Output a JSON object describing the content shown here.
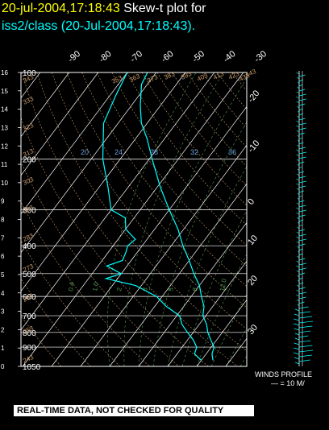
{
  "header": {
    "datetime": "20-jul-2004,17:18:43",
    "label": "Skew-t plot for",
    "subtitle": "iss2/class (20-Jul-2004,17:18:43)."
  },
  "footer": {
    "winds_label": "WINDS PROFILE",
    "winds_scale": "— = 10 M/",
    "notice": "REAL-TIME DATA, NOT CHECKED FOR QUALITY"
  },
  "chart_data": {
    "type": "line",
    "title": "Skew-t plot for iss2/class (20-Jul-2004,17:18:43).",
    "pressure_ticks": [
      100,
      200,
      300,
      400,
      500,
      600,
      700,
      800,
      900,
      1050
    ],
    "height_ticks_km": [
      16,
      15,
      14,
      13,
      12,
      11,
      10,
      9,
      8,
      7,
      6,
      5,
      4,
      3,
      2,
      1,
      0
    ],
    "skewed_temp_top": [
      -90,
      -80,
      -70,
      -60,
      -50,
      -40,
      -30
    ],
    "skewed_temp_right": [
      -20,
      -10,
      0,
      10,
      20,
      30
    ],
    "theta_labels": [
      243,
      253,
      263,
      273,
      283,
      293,
      303,
      313,
      323,
      333,
      343,
      353,
      363,
      373,
      383,
      393,
      403,
      413,
      423,
      433,
      443
    ],
    "mixing_ratio_labels": [
      20,
      24,
      28,
      32,
      36
    ],
    "mixing_ratio_low": [
      "0.4",
      "1.0",
      "2",
      "3",
      "5",
      "8",
      "12.0"
    ],
    "series": [
      {
        "name": "temperature",
        "color": "#00ffff",
        "points": [
          [
            1000,
            24
          ],
          [
            950,
            22
          ],
          [
            900,
            21
          ],
          [
            850,
            18
          ],
          [
            800,
            15
          ],
          [
            750,
            12.5
          ],
          [
            700,
            9
          ],
          [
            650,
            7
          ],
          [
            600,
            3.5
          ],
          [
            550,
            0
          ],
          [
            500,
            -5
          ],
          [
            450,
            -10
          ],
          [
            400,
            -16
          ],
          [
            350,
            -22
          ],
          [
            300,
            -30
          ],
          [
            250,
            -39
          ],
          [
            200,
            -49
          ],
          [
            170,
            -56
          ],
          [
            150,
            -62
          ],
          [
            130,
            -67
          ],
          [
            110,
            -72
          ],
          [
            100,
            -73
          ]
        ]
      },
      {
        "name": "dewpoint",
        "color": "#00ffff",
        "points": [
          [
            1000,
            20
          ],
          [
            950,
            16
          ],
          [
            900,
            15
          ],
          [
            850,
            12
          ],
          [
            800,
            8
          ],
          [
            750,
            4
          ],
          [
            700,
            1
          ],
          [
            650,
            -6
          ],
          [
            600,
            -12
          ],
          [
            550,
            -22
          ],
          [
            520,
            -34
          ],
          [
            500,
            -30
          ],
          [
            470,
            -37
          ],
          [
            450,
            -33
          ],
          [
            420,
            -34
          ],
          [
            400,
            -35
          ],
          [
            380,
            -34
          ],
          [
            350,
            -40
          ],
          [
            320,
            -43
          ],
          [
            300,
            -50
          ],
          [
            250,
            -57
          ],
          [
            200,
            -66
          ],
          [
            150,
            -75
          ],
          [
            120,
            -78
          ],
          [
            100,
            -80
          ]
        ]
      }
    ],
    "wind_profile_color": "#00ffff"
  }
}
